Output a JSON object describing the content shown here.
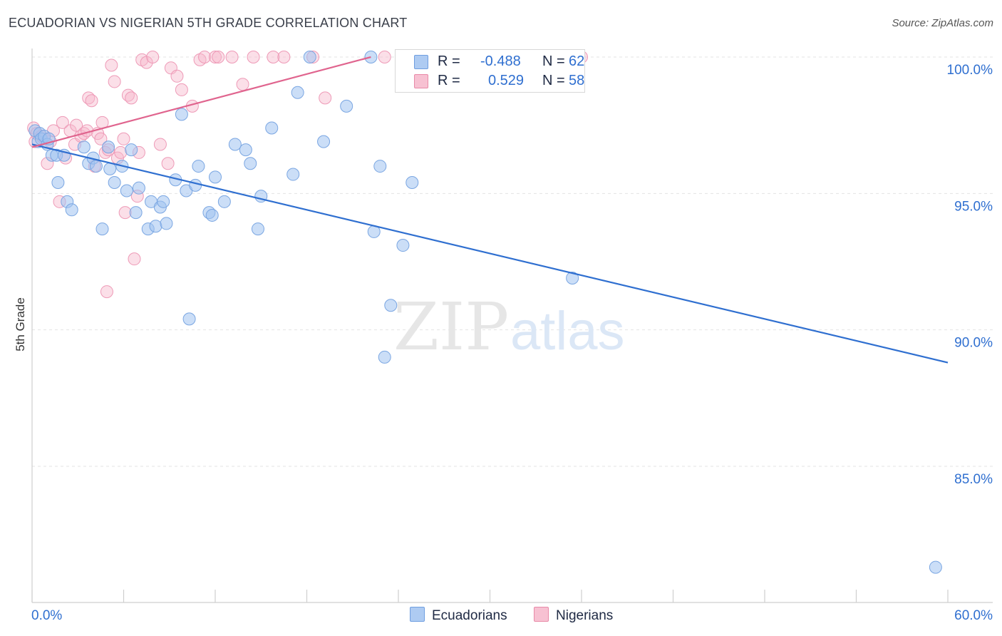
{
  "title": "ECUADORIAN VS NIGERIAN 5TH GRADE CORRELATION CHART",
  "source": "Source: ZipAtlas.com",
  "legend": {
    "r_label": "R =",
    "n_label": "N =",
    "series": [
      {
        "name": "Ecuadorians",
        "r": "-0.488",
        "n": "62",
        "fill": "#aecbf2",
        "stroke": "#6f9ee0"
      },
      {
        "name": "Nigerians",
        "r": "0.529",
        "n": "58",
        "fill": "#f7c1d2",
        "stroke": "#e88aa8"
      }
    ]
  },
  "watermark": {
    "part1": "ZIP",
    "part2": "atlas"
  },
  "chart_data": {
    "type": "scatter",
    "title": "ECUADORIAN VS NIGERIAN 5TH GRADE CORRELATION CHART",
    "xlabel": "",
    "ylabel": "5th Grade",
    "xlim": [
      0,
      60
    ],
    "ylim": [
      80.5,
      100.8
    ],
    "x_tick_labels": [
      "0.0%",
      "60.0%"
    ],
    "y_ticks": [
      85,
      90,
      95,
      100
    ],
    "y_tick_labels": [
      "85.0%",
      "90.0%",
      "95.0%",
      "100.0%"
    ],
    "grid": true,
    "series": [
      {
        "name": "Ecuadorians",
        "color": "#2f6fd0",
        "points": [
          [
            0.2,
            97.3
          ],
          [
            0.4,
            96.9
          ],
          [
            0.5,
            97.2
          ],
          [
            0.6,
            97.0
          ],
          [
            0.8,
            97.1
          ],
          [
            1.0,
            96.8
          ],
          [
            1.1,
            97.0
          ],
          [
            1.3,
            96.4
          ],
          [
            1.6,
            96.4
          ],
          [
            1.7,
            95.4
          ],
          [
            2.1,
            96.4
          ],
          [
            2.3,
            94.7
          ],
          [
            2.6,
            94.4
          ],
          [
            3.4,
            96.7
          ],
          [
            3.7,
            96.1
          ],
          [
            4.0,
            96.3
          ],
          [
            4.2,
            96.0
          ],
          [
            4.6,
            93.7
          ],
          [
            5.0,
            96.7
          ],
          [
            5.1,
            95.9
          ],
          [
            5.4,
            95.4
          ],
          [
            5.9,
            96.0
          ],
          [
            6.2,
            95.1
          ],
          [
            6.5,
            96.6
          ],
          [
            6.8,
            94.3
          ],
          [
            7.0,
            95.2
          ],
          [
            7.6,
            93.7
          ],
          [
            7.8,
            94.7
          ],
          [
            8.1,
            93.8
          ],
          [
            8.4,
            94.5
          ],
          [
            8.6,
            94.7
          ],
          [
            8.8,
            93.9
          ],
          [
            9.4,
            95.5
          ],
          [
            9.8,
            97.9
          ],
          [
            10.1,
            95.1
          ],
          [
            10.3,
            90.4
          ],
          [
            10.7,
            95.3
          ],
          [
            10.9,
            96.0
          ],
          [
            11.6,
            94.3
          ],
          [
            11.8,
            94.2
          ],
          [
            12.0,
            95.6
          ],
          [
            12.6,
            94.7
          ],
          [
            13.3,
            96.8
          ],
          [
            14.0,
            96.6
          ],
          [
            14.3,
            96.1
          ],
          [
            14.8,
            93.7
          ],
          [
            15.0,
            94.9
          ],
          [
            15.7,
            97.4
          ],
          [
            17.1,
            95.7
          ],
          [
            17.4,
            98.7
          ],
          [
            18.2,
            100.0
          ],
          [
            19.1,
            96.9
          ],
          [
            20.6,
            98.2
          ],
          [
            22.2,
            100.0
          ],
          [
            22.4,
            93.6
          ],
          [
            22.8,
            96.0
          ],
          [
            23.1,
            89.0
          ],
          [
            23.5,
            90.9
          ],
          [
            24.3,
            93.1
          ],
          [
            24.9,
            95.4
          ],
          [
            35.4,
            91.9
          ],
          [
            59.2,
            81.3
          ]
        ]
      },
      {
        "name": "Nigerians",
        "color": "#e0648e",
        "points": [
          [
            0.1,
            97.4
          ],
          [
            0.2,
            96.9
          ],
          [
            0.3,
            97.2
          ],
          [
            0.6,
            97.1
          ],
          [
            0.8,
            97.0
          ],
          [
            1.0,
            96.1
          ],
          [
            1.2,
            96.9
          ],
          [
            1.4,
            97.3
          ],
          [
            1.8,
            94.7
          ],
          [
            2.0,
            97.6
          ],
          [
            2.2,
            96.3
          ],
          [
            2.5,
            97.3
          ],
          [
            2.8,
            96.8
          ],
          [
            2.9,
            97.5
          ],
          [
            3.2,
            97.1
          ],
          [
            3.4,
            97.2
          ],
          [
            3.6,
            97.3
          ],
          [
            3.7,
            98.5
          ],
          [
            3.9,
            98.4
          ],
          [
            4.1,
            96.0
          ],
          [
            4.3,
            97.2
          ],
          [
            4.5,
            97.0
          ],
          [
            4.6,
            97.6
          ],
          [
            4.8,
            96.5
          ],
          [
            4.9,
            91.4
          ],
          [
            5.0,
            96.6
          ],
          [
            5.2,
            99.7
          ],
          [
            5.4,
            99.1
          ],
          [
            5.6,
            96.3
          ],
          [
            5.8,
            96.5
          ],
          [
            6.0,
            97.0
          ],
          [
            6.1,
            94.3
          ],
          [
            6.3,
            98.6
          ],
          [
            6.5,
            98.5
          ],
          [
            6.7,
            92.6
          ],
          [
            6.9,
            94.9
          ],
          [
            7.0,
            96.5
          ],
          [
            7.2,
            99.9
          ],
          [
            7.5,
            99.8
          ],
          [
            7.9,
            100.0
          ],
          [
            8.4,
            96.8
          ],
          [
            8.9,
            96.1
          ],
          [
            9.1,
            99.6
          ],
          [
            9.5,
            99.3
          ],
          [
            9.8,
            98.8
          ],
          [
            10.5,
            98.2
          ],
          [
            11.0,
            99.9
          ],
          [
            11.3,
            100.0
          ],
          [
            12.0,
            100.0
          ],
          [
            12.2,
            100.0
          ],
          [
            13.1,
            100.0
          ],
          [
            13.8,
            99.0
          ],
          [
            14.5,
            100.0
          ],
          [
            15.8,
            100.0
          ],
          [
            16.5,
            100.0
          ],
          [
            18.4,
            100.0
          ],
          [
            19.2,
            98.5
          ],
          [
            23.1,
            100.0
          ]
        ]
      }
    ],
    "trend_lines": [
      {
        "series": "Ecuadorians",
        "x": [
          0,
          60
        ],
        "y": [
          96.8,
          88.8
        ]
      },
      {
        "series": "Nigerians",
        "x": [
          0,
          22.2
        ],
        "y": [
          96.7,
          100.0
        ]
      }
    ],
    "outlier_label": {
      "series": "Nigerians",
      "x": 36.0,
      "y": 100.0
    }
  }
}
